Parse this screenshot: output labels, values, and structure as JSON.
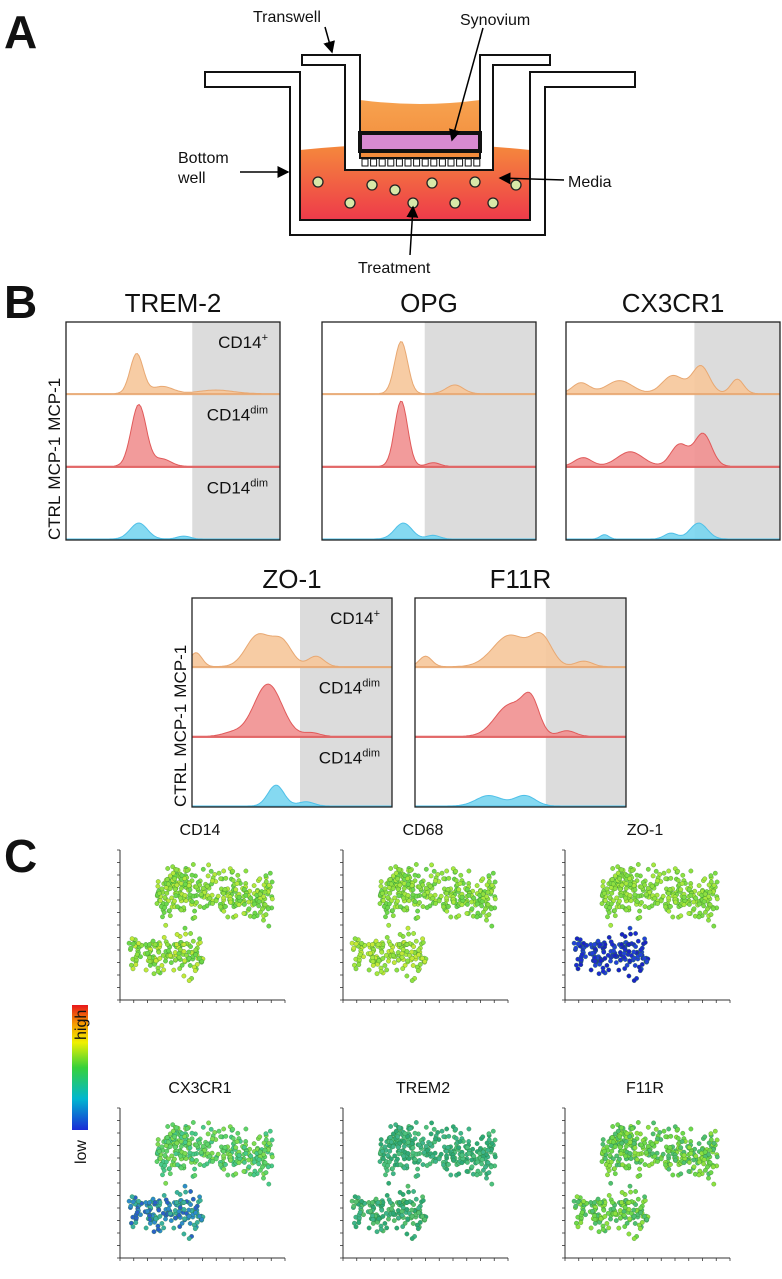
{
  "panel_labels": [
    "A",
    "B",
    "C"
  ],
  "diagram": {
    "transwell": "Transwell",
    "synovium": "Synovium",
    "bottom_well": [
      "Bottom",
      "well"
    ],
    "media": "Media",
    "treatment": "Treatment"
  },
  "histograms": {
    "titles": [
      "TREM-2",
      "OPG",
      "CX3CR1",
      "ZO-1",
      "F11R"
    ],
    "row_labels": [
      "MCP-1",
      "MCP-1",
      "CTRL"
    ],
    "cell_labels": [
      {
        "base": "CD14",
        "sup": "+"
      },
      {
        "base": "CD14",
        "sup": "dim"
      },
      {
        "base": "CD14",
        "sup": "dim"
      }
    ]
  },
  "tsne": {
    "titles": [
      "CD14",
      "CD68",
      "ZO-1",
      "CX3CR1",
      "TREM2",
      "F11R"
    ],
    "scale": {
      "high": "high",
      "low": "low"
    }
  }
}
